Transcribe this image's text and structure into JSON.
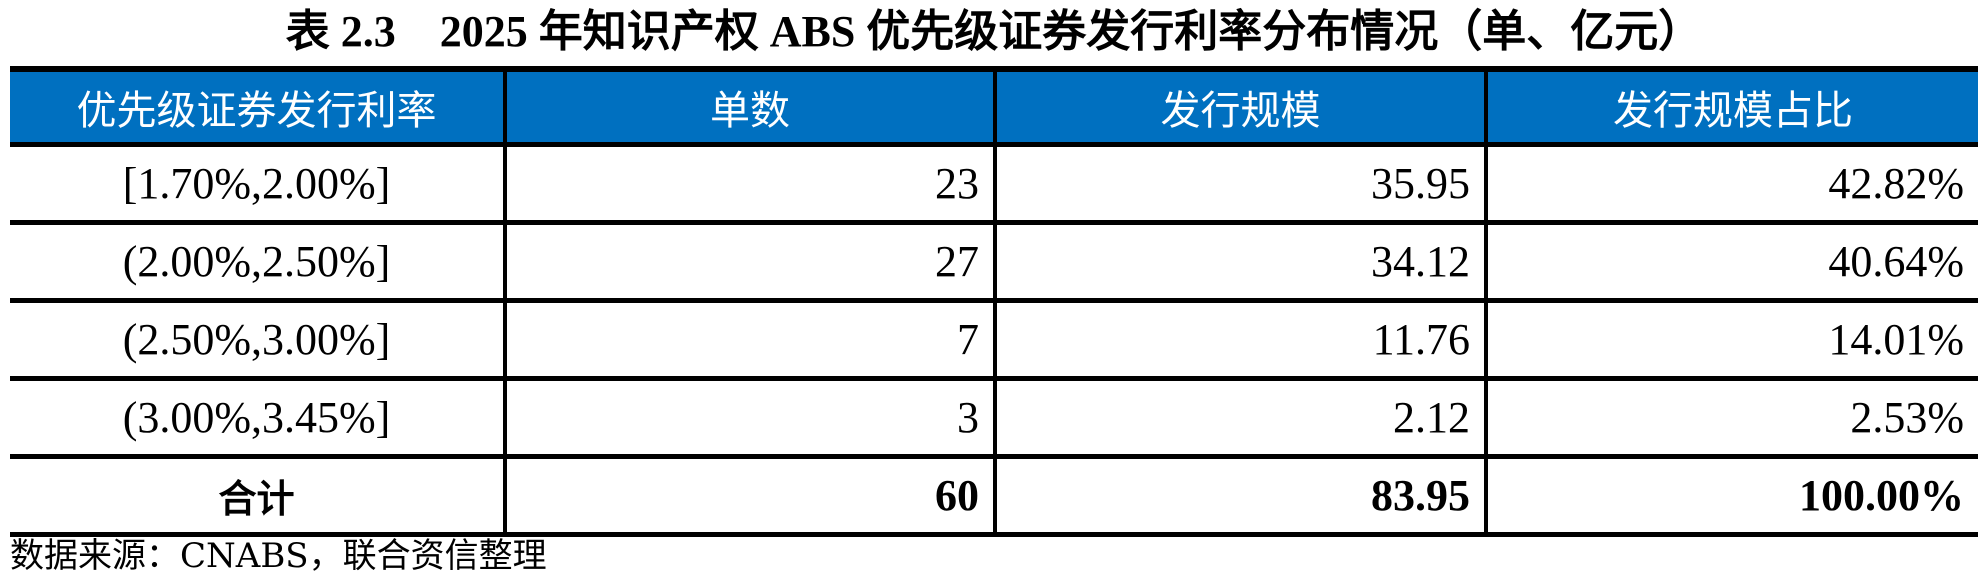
{
  "title": "表 2.3　2025 年知识产权 ABS 优先级证券发行利率分布情况（单、亿元）",
  "header_color": "#0070C0",
  "columns": [
    "优先级证券发行利率",
    "单数",
    "发行规模",
    "发行规模占比"
  ],
  "rows": [
    [
      "[1.70%,2.00%]",
      "23",
      "35.95",
      "42.82%"
    ],
    [
      "(2.00%,2.50%]",
      "27",
      "34.12",
      "40.64%"
    ],
    [
      "(2.50%,3.00%]",
      "7",
      "11.76",
      "14.01%"
    ],
    [
      "(3.00%,3.45%]",
      "3",
      "2.12",
      "2.53%"
    ]
  ],
  "total": [
    "合计",
    "60",
    "83.95",
    "100.00%"
  ],
  "source": "数据来源：CNABS，联合资信整理"
}
